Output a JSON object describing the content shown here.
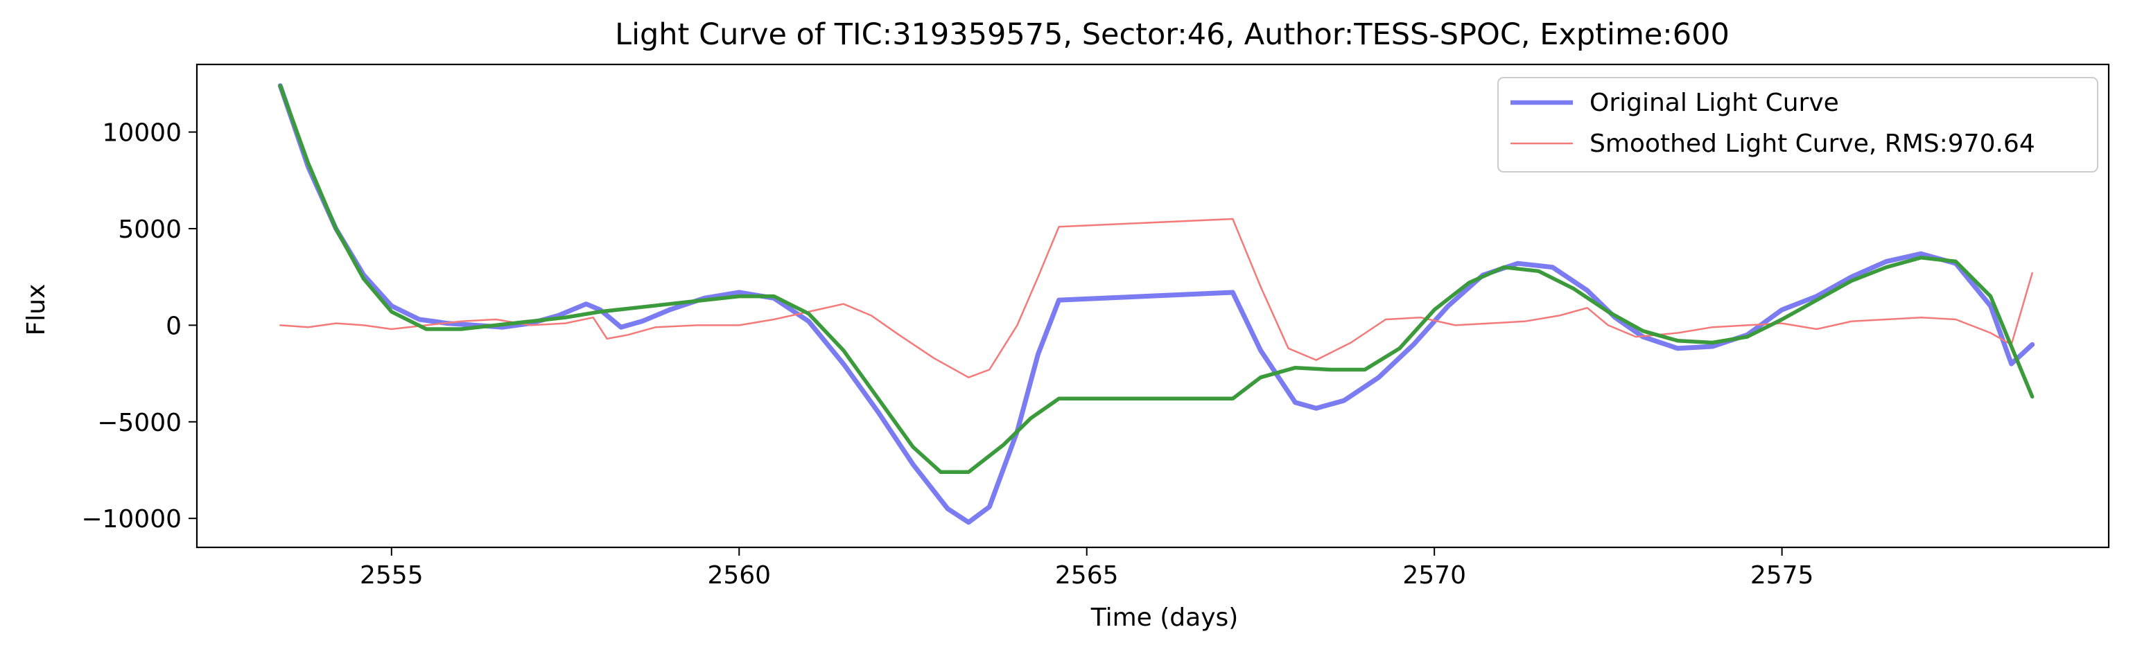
{
  "chart_data": {
    "type": "line",
    "title": "Light Curve of TIC:319359575, Sector:46, Author:TESS-SPOC, Exptime:600",
    "xlabel": "Time (days)",
    "ylabel": "Flux",
    "xlim": [
      2552.2,
      2579.7
    ],
    "ylim": [
      -11500,
      13500
    ],
    "xticks": [
      2555,
      2560,
      2565,
      2570,
      2575
    ],
    "yticks": [
      -10000,
      -5000,
      0,
      5000,
      10000
    ],
    "grid": false,
    "legend_position": "top-right",
    "series": [
      {
        "name": "Original Light Curve",
        "color": "#7b7bf2",
        "style": "thick",
        "x": [
          2553.4,
          2553.8,
          2554.2,
          2554.6,
          2555.0,
          2555.4,
          2555.8,
          2556.2,
          2556.6,
          2557.0,
          2557.4,
          2557.8,
          2558.0,
          2558.3,
          2558.6,
          2559.0,
          2559.5,
          2560.0,
          2560.5,
          2561.0,
          2561.5,
          2562.0,
          2562.5,
          2563.0,
          2563.3,
          2563.6,
          2564.0,
          2564.3,
          2564.6,
          2567.1,
          2567.5,
          2568.0,
          2568.3,
          2568.7,
          2569.2,
          2569.7,
          2570.2,
          2570.7,
          2571.2,
          2571.7,
          2572.2,
          2572.6,
          2573.0,
          2573.5,
          2574.0,
          2574.5,
          2575.0,
          2575.5,
          2576.0,
          2576.5,
          2577.0,
          2577.5,
          2578.0,
          2578.3,
          2578.6
        ],
        "y": [
          12400,
          8200,
          5000,
          2600,
          1000,
          300,
          100,
          0,
          -100,
          100,
          500,
          1100,
          800,
          -100,
          200,
          800,
          1400,
          1700,
          1400,
          200,
          -2000,
          -4500,
          -7200,
          -9500,
          -10200,
          -9400,
          -5500,
          -1500,
          1300,
          1700,
          -1300,
          -4000,
          -4300,
          -3900,
          -2700,
          -1000,
          1000,
          2600,
          3200,
          3000,
          1800,
          400,
          -600,
          -1200,
          -1100,
          -500,
          800,
          1500,
          2500,
          3300,
          3700,
          3200,
          1000,
          -2000,
          -1000
        ]
      },
      {
        "name": "Smoothed Light Curve, RMS:970.64",
        "color": "#f47a7a",
        "style": "thin",
        "x": [
          2553.4,
          2553.8,
          2554.2,
          2554.6,
          2555.0,
          2555.5,
          2556.0,
          2556.5,
          2557.0,
          2557.5,
          2557.9,
          2558.1,
          2558.4,
          2558.8,
          2559.4,
          2560.0,
          2560.5,
          2561.0,
          2561.5,
          2561.9,
          2562.3,
          2562.8,
          2563.3,
          2563.6,
          2564.0,
          2564.3,
          2564.6,
          2567.1,
          2567.5,
          2567.9,
          2568.3,
          2568.8,
          2569.3,
          2569.8,
          2570.3,
          2570.8,
          2571.3,
          2571.8,
          2572.2,
          2572.5,
          2572.9,
          2573.5,
          2574.0,
          2574.5,
          2575.0,
          2575.5,
          2576.0,
          2576.5,
          2577.0,
          2577.5,
          2578.0,
          2578.3,
          2578.6
        ],
        "y": [
          0,
          -100,
          100,
          0,
          -200,
          0,
          200,
          300,
          0,
          100,
          400,
          -700,
          -500,
          -100,
          0,
          0,
          300,
          700,
          1100,
          500,
          -500,
          -1700,
          -2700,
          -2300,
          0,
          2500,
          5100,
          5500,
          2000,
          -1200,
          -1800,
          -900,
          300,
          400,
          0,
          100,
          200,
          500,
          900,
          0,
          -600,
          -400,
          -100,
          0,
          100,
          -200,
          200,
          300,
          400,
          300,
          -400,
          -1000,
          2700
        ]
      },
      {
        "name": "",
        "color": "#3b9a3b",
        "style": "medium",
        "x": [
          2553.4,
          2553.8,
          2554.2,
          2554.6,
          2555.0,
          2555.5,
          2556.0,
          2556.5,
          2557.0,
          2557.5,
          2558.0,
          2558.5,
          2559.0,
          2559.5,
          2560.0,
          2560.5,
          2561.0,
          2561.5,
          2562.0,
          2562.5,
          2562.9,
          2563.3,
          2563.8,
          2564.2,
          2564.6,
          2567.1,
          2567.5,
          2568.0,
          2568.5,
          2569.0,
          2569.5,
          2570.0,
          2570.5,
          2571.0,
          2571.5,
          2572.0,
          2572.5,
          2573.0,
          2573.5,
          2574.0,
          2574.5,
          2575.0,
          2575.5,
          2576.0,
          2576.5,
          2577.0,
          2577.5,
          2578.0,
          2578.6
        ],
        "y": [
          12400,
          8400,
          5000,
          2400,
          700,
          -200,
          -200,
          0,
          200,
          400,
          700,
          900,
          1100,
          1300,
          1500,
          1500,
          600,
          -1300,
          -3800,
          -6300,
          -7600,
          -7600,
          -6200,
          -4800,
          -3800,
          -3800,
          -2700,
          -2200,
          -2300,
          -2300,
          -1200,
          800,
          2200,
          3000,
          2800,
          1900,
          700,
          -300,
          -800,
          -900,
          -600,
          300,
          1300,
          2300,
          3000,
          3500,
          3300,
          1500,
          -3700
        ]
      }
    ]
  }
}
